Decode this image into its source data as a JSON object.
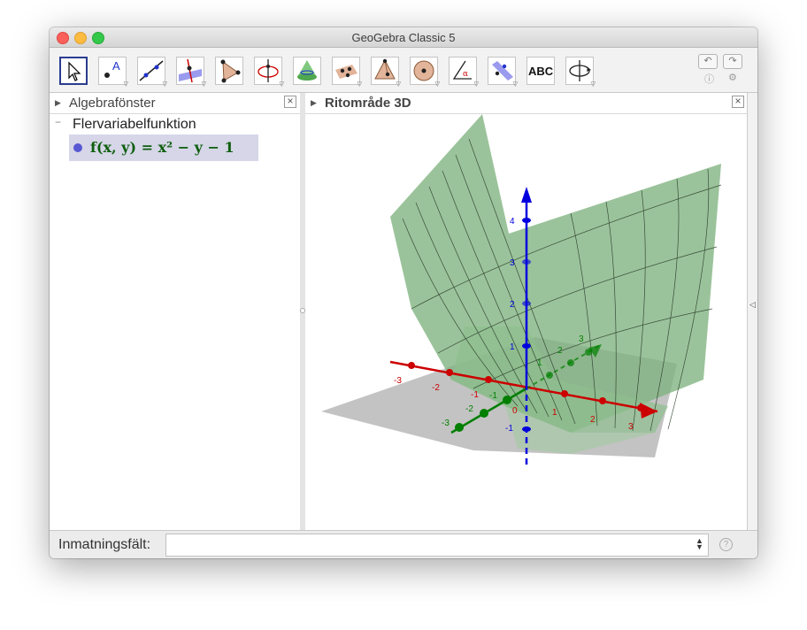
{
  "window": {
    "title": "GeoGebra Classic 5"
  },
  "toolbar": {
    "tools": [
      {
        "name": "move-tool",
        "icon": "cursor-arrow-icon",
        "selected": true
      },
      {
        "name": "point-tool",
        "icon": "point-icon"
      },
      {
        "name": "line-tool",
        "icon": "line-icon"
      },
      {
        "name": "perpendicular-line-tool",
        "icon": "perpendicular-icon"
      },
      {
        "name": "polygon-tool",
        "icon": "polygon-icon"
      },
      {
        "name": "circle-axis-tool",
        "icon": "circle-axis-icon"
      },
      {
        "name": "intersect-surfaces-tool",
        "icon": "cone-icon"
      },
      {
        "name": "plane-tool",
        "icon": "plane-icon"
      },
      {
        "name": "pyramid-tool",
        "icon": "pyramid-icon"
      },
      {
        "name": "sphere-tool",
        "icon": "sphere-icon"
      },
      {
        "name": "angle-tool",
        "icon": "angle-icon"
      },
      {
        "name": "reflect-tool",
        "icon": "reflect-icon"
      },
      {
        "name": "text-tool",
        "icon": "text-icon",
        "label": "ABC"
      },
      {
        "name": "rotate-view-tool",
        "icon": "rotate-view-icon"
      }
    ],
    "undo_icon": "undo-icon",
    "redo_icon": "redo-icon",
    "help_icon": "help-icon",
    "settings_icon": "gear-icon"
  },
  "algebra": {
    "title": "Algebrafönster",
    "group": "Flervariabelfunktion",
    "function": {
      "name": "f",
      "args": "(x, y)",
      "expression": "x² − y − 1",
      "color": "#0f5f0f",
      "dot_color": "#5858d4"
    }
  },
  "view3d": {
    "title": "Ritområde 3D",
    "surface_color": "#7fb27f",
    "axes": {
      "x": {
        "color": "#cc0000",
        "ticks": [
          "-3",
          "-2",
          "-1",
          "0",
          "1",
          "2",
          "3"
        ]
      },
      "y": {
        "color": "#007f00",
        "ticks": [
          "-3",
          "-2",
          "-1",
          "1",
          "2",
          "3"
        ]
      },
      "z": {
        "color": "#0000dd",
        "ticks": [
          "-1",
          "1",
          "2",
          "3",
          "4"
        ]
      }
    }
  },
  "inputbar": {
    "label": "Inmatningsfält:",
    "value": ""
  }
}
